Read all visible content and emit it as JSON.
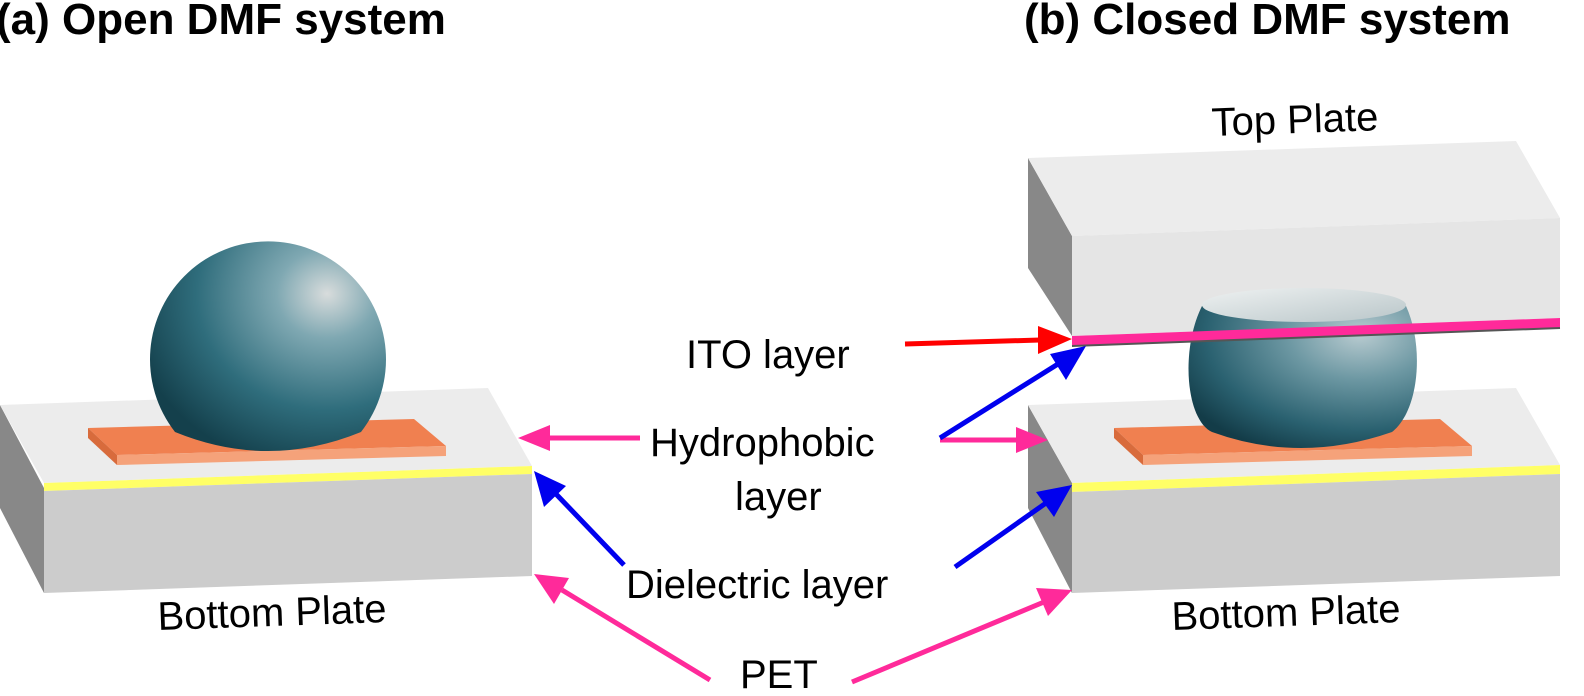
{
  "panel_a": {
    "title": "(a) Open DMF system",
    "bottom_plate_label": "Bottom Plate"
  },
  "panel_b": {
    "title": "(b) Closed DMF system",
    "top_plate_label": "Top Plate",
    "bottom_plate_label": "Bottom Plate"
  },
  "labels": {
    "ito": "ITO layer",
    "hydrophobic_line1": "Hydrophobic",
    "hydrophobic_line2": "layer",
    "dielectric": "Dielectric layer",
    "pet": "PET"
  },
  "colors": {
    "ito_arrow": "#ff0000",
    "hydrophobic_arrow": "#ff2a9a",
    "dielectric_arrow": "#0000ee",
    "pet_arrow": "#ff2a9a",
    "dielectric_stripe": "#ffff66",
    "ito_stripe": "#ff2a9a",
    "electrode": "#f08050",
    "plate_top": "#ececec",
    "plate_front": "#cccccc",
    "plate_side": "#888888"
  }
}
